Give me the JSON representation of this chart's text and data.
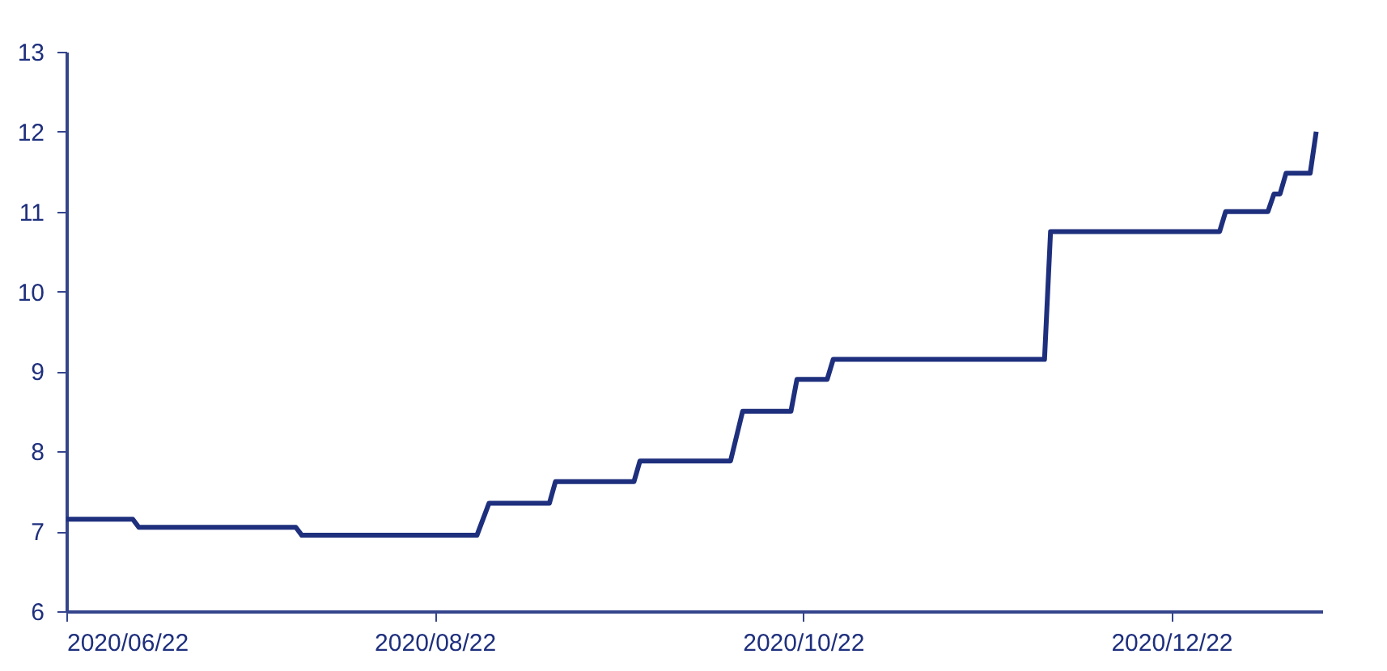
{
  "chart_data": {
    "type": "line",
    "line_style": "solid",
    "marker": "none",
    "grid": false,
    "x": [
      "2020-06-22",
      "2020-07-03",
      "2020-07-04",
      "2020-07-30",
      "2020-07-31",
      "2020-08-29",
      "2020-08-31",
      "2020-09-10",
      "2020-09-11",
      "2020-09-24",
      "2020-09-25",
      "2020-10-10",
      "2020-10-12",
      "2020-10-20",
      "2020-10-21",
      "2020-10-26",
      "2020-10-27",
      "2020-12-01",
      "2020-12-02",
      "2020-12-30",
      "2020-12-31",
      "2021-01-07",
      "2021-01-08",
      "2021-01-09",
      "2021-01-10",
      "2021-01-14",
      "2021-01-15"
    ],
    "series": [
      {
        "color": "#1e2f7d",
        "values": [
          7.15,
          7.15,
          7.05,
          7.05,
          6.95,
          6.95,
          7.35,
          7.35,
          7.62,
          7.62,
          7.88,
          7.88,
          8.5,
          8.5,
          8.9,
          8.9,
          9.15,
          9.15,
          10.75,
          10.75,
          11.0,
          11.0,
          11.22,
          11.22,
          11.48,
          11.48,
          12.0
        ]
      }
    ],
    "xlim": [
      "2020-06-22",
      "2021-01-16"
    ],
    "xticks": [
      {
        "value": "2020-06-22",
        "label": "2020/06/22"
      },
      {
        "value": "2020-08-22",
        "label": "2020/08/22"
      },
      {
        "value": "2020-10-22",
        "label": "2020/10/22"
      },
      {
        "value": "2020-12-22",
        "label": "2020/12/22"
      }
    ],
    "ylim": [
      6,
      13
    ],
    "yticks": [
      6,
      7,
      8,
      9,
      10,
      11,
      12,
      13
    ]
  }
}
